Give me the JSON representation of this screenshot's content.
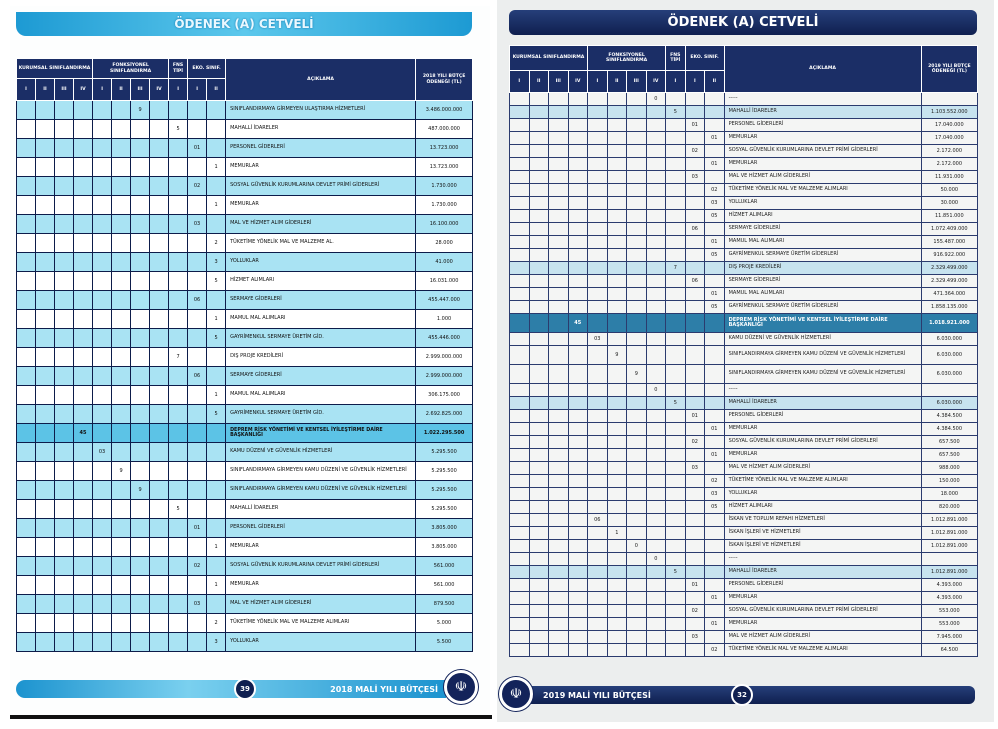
{
  "left_page": {
    "title": "ÖDENEK (A) CETVELİ",
    "headers": {
      "kurumsal": "KURUMSAL SINIFLANDIRMA",
      "fonksiyonel": "FONKSİYONEL SINIFLANDIRMA",
      "fns": "FNS TİPİ",
      "eko": "EKO. SINIF.",
      "aciklama": "AÇIKLAMA",
      "amount": "2018 YILI BÜTÇE ÖDENEĞİ (TL)",
      "levels": [
        "I",
        "II",
        "III",
        "IV",
        "I",
        "II",
        "III",
        "IV",
        "I",
        "I",
        "II"
      ]
    },
    "rows": [
      {
        "col": 6,
        "code": "9",
        "desc": "SINIFLANDIRMAYA GİRMEYEN ULAŞTIRMA HİZMETLERİ",
        "amount": "3.486.000.000",
        "kind": "shaded"
      },
      {
        "col": 8,
        "code": "5",
        "desc": "MAHALLİ İDARELER",
        "amount": "487.000.000",
        "kind": "white"
      },
      {
        "col": 9,
        "code": "01",
        "desc": "PERSONEL GİDERLERİ",
        "amount": "13.723.000",
        "kind": "shaded"
      },
      {
        "col": 10,
        "code": "1",
        "desc": "MEMURLAR",
        "amount": "13.723.000",
        "kind": "white"
      },
      {
        "col": 9,
        "code": "02",
        "desc": "SOSYAL GÜVENLİK KURUMLARINA DEVLET PRİMİ GİDERLERİ",
        "amount": "1.730.000",
        "kind": "shaded"
      },
      {
        "col": 10,
        "code": "1",
        "desc": "MEMURLAR",
        "amount": "1.730.000",
        "kind": "white"
      },
      {
        "col": 9,
        "code": "03",
        "desc": "MAL VE HİZMET ALIM GİDERLERİ",
        "amount": "16.100.000",
        "kind": "shaded"
      },
      {
        "col": 10,
        "code": "2",
        "desc": "TÜKETİME YÖNELİK MAL VE MALZEME AL.",
        "amount": "28.000",
        "kind": "white"
      },
      {
        "col": 10,
        "code": "3",
        "desc": "YOLLUKLAR",
        "amount": "41.000",
        "kind": "shaded"
      },
      {
        "col": 10,
        "code": "5",
        "desc": "HİZMET ALIMLARI",
        "amount": "16.031.000",
        "kind": "white"
      },
      {
        "col": 9,
        "code": "06",
        "desc": "SERMAYE GİDERLERİ",
        "amount": "455.447.000",
        "kind": "shaded"
      },
      {
        "col": 10,
        "code": "1",
        "desc": "MAMUL MAL ALIMLARI",
        "amount": "1.000",
        "kind": "white"
      },
      {
        "col": 10,
        "code": "5",
        "desc": "GAYRİMENKUL SERMAYE ÜRETİM GİD.",
        "amount": "455.446.000",
        "kind": "shaded"
      },
      {
        "col": 8,
        "code": "7",
        "desc": "DIŞ PROJE KREDİLERİ",
        "amount": "2.999.000.000",
        "kind": "white"
      },
      {
        "col": 9,
        "code": "06",
        "desc": "SERMAYE GİDERLERİ",
        "amount": "2.999.000.000",
        "kind": "shaded"
      },
      {
        "col": 10,
        "code": "1",
        "desc": "MAMUL MAL ALIMLARI",
        "amount": "306.175.000",
        "kind": "white"
      },
      {
        "col": 10,
        "code": "5",
        "desc": "GAYRİMENKUL SERMAYE ÜRETİM GİD.",
        "amount": "2.692.825.000",
        "kind": "shaded"
      },
      {
        "col": 3,
        "code": "45",
        "desc": "DEPREM RİSK YÖNETİMİ VE KENTSEL İYİLEŞTİRME DAİRE BAŞKANLIĞI",
        "amount": "1.022.295.500",
        "kind": "dept"
      },
      {
        "col": 4,
        "code": "03",
        "desc": "KAMU DÜZENİ VE GÜVENLİK HİZMETLERİ",
        "amount": "5.295.500",
        "kind": "shaded"
      },
      {
        "col": 5,
        "code": "9",
        "desc": "SINIFLANDIRMAYA GİRMEYEN KAMU DÜZENİ VE GÜVENLİK HİZMETLERİ",
        "amount": "5.295.500",
        "kind": "white"
      },
      {
        "col": 6,
        "code": "9",
        "desc": "SINIFLANDIRMAYA GİRMEYEN KAMU DÜZENİ VE GÜVENLİK HİZMETLERİ",
        "amount": "5.295.500",
        "kind": "shaded"
      },
      {
        "col": 8,
        "code": "5",
        "desc": "MAHALLİ İDARELER",
        "amount": "5.295.500",
        "kind": "white"
      },
      {
        "col": 9,
        "code": "01",
        "desc": "PERSONEL GİDERLERİ",
        "amount": "3.805.000",
        "kind": "shaded"
      },
      {
        "col": 10,
        "code": "1",
        "desc": "MEMURLAR",
        "amount": "3.805.000",
        "kind": "white"
      },
      {
        "col": 9,
        "code": "02",
        "desc": "SOSYAL GÜVENLİK KURUMLARINA DEVLET PRİMİ GİDERLERİ",
        "amount": "561.000",
        "kind": "shaded"
      },
      {
        "col": 10,
        "code": "1",
        "desc": "MEMURLAR",
        "amount": "561.000",
        "kind": "white"
      },
      {
        "col": 9,
        "code": "03",
        "desc": "MAL VE HİZMET ALIM GİDERLERİ",
        "amount": "879.500",
        "kind": "shaded"
      },
      {
        "col": 10,
        "code": "2",
        "desc": "TÜKETİME YÖNELİK MAL VE MALZEME ALIMLARI",
        "amount": "5.000",
        "kind": "white"
      },
      {
        "col": 10,
        "code": "3",
        "desc": "YOLLUKLAR",
        "amount": "5.500",
        "kind": "shaded"
      }
    ],
    "footer": {
      "page_number": "39",
      "label": "2018 MALİ YILI BÜTÇESİ"
    }
  },
  "right_page": {
    "title": "ÖDENEK (A) CETVELİ",
    "headers": {
      "kurumsal": "KURUMSAL SINIFLANDIRMA",
      "fonksiyonel": "FONKSİYONEL SINIFLANDIRMA",
      "fns": "FNS TİPİ",
      "eko": "EKO. SINIF.",
      "aciklama": "AÇIKLAMA",
      "amount": "2019 YILI BÜTÇE ÖDENEĞİ (TL)",
      "levels": [
        "I",
        "II",
        "III",
        "IV",
        "I",
        "II",
        "III",
        "IV",
        "I",
        "I",
        "II"
      ]
    },
    "rows": [
      {
        "col": 7,
        "code": "0",
        "desc": "-----",
        "amount": "",
        "kind": "white"
      },
      {
        "col": 8,
        "code": "5",
        "desc": "MAHALLİ İDARELER",
        "amount": "1.103.552.000",
        "kind": "hl"
      },
      {
        "col": 9,
        "code": "01",
        "desc": "PERSONEL GİDERLERİ",
        "amount": "17.040.000",
        "kind": "white"
      },
      {
        "col": 10,
        "code": "01",
        "desc": "MEMURLAR",
        "amount": "17.040.000",
        "kind": "white"
      },
      {
        "col": 9,
        "code": "02",
        "desc": "SOSYAL GÜVENLİK KURUMLARINA DEVLET PRİMİ GİDERLERİ",
        "amount": "2.172.000",
        "kind": "white"
      },
      {
        "col": 10,
        "code": "01",
        "desc": "MEMURLAR",
        "amount": "2.172.000",
        "kind": "white"
      },
      {
        "col": 9,
        "code": "03",
        "desc": "MAL VE HİZMET ALIM GİDERLERİ",
        "amount": "11.931.000",
        "kind": "white"
      },
      {
        "col": 10,
        "code": "02",
        "desc": "TÜKETİME YÖNELİK MAL VE MALZEME ALIMLARI",
        "amount": "50.000",
        "kind": "white"
      },
      {
        "col": 10,
        "code": "03",
        "desc": "YOLLUKLAR",
        "amount": "30.000",
        "kind": "white"
      },
      {
        "col": 10,
        "code": "05",
        "desc": "HİZMET ALIMLARI",
        "amount": "11.851.000",
        "kind": "white"
      },
      {
        "col": 9,
        "code": "06",
        "desc": "SERMAYE GİDERLERİ",
        "amount": "1.072.409.000",
        "kind": "white"
      },
      {
        "col": 10,
        "code": "01",
        "desc": "MAMUL MAL ALIMLARI",
        "amount": "155.487.000",
        "kind": "white"
      },
      {
        "col": 10,
        "code": "05",
        "desc": "GAYRİMENKUL SERMAYE ÜRETİM GİDERLERİ",
        "amount": "916.922.000",
        "kind": "white"
      },
      {
        "col": 8,
        "code": "7",
        "desc": "DIŞ PROJE KREDİLERİ",
        "amount": "2.329.499.000",
        "kind": "hl"
      },
      {
        "col": 9,
        "code": "06",
        "desc": "SERMAYE GİDERLERİ",
        "amount": "2.329.499.000",
        "kind": "white"
      },
      {
        "col": 10,
        "code": "01",
        "desc": "MAMUL MAL ALIMLARI",
        "amount": "471.364.000",
        "kind": "white"
      },
      {
        "col": 10,
        "code": "05",
        "desc": "GAYRİMENKUL SERMAYE ÜRETİM GİDERLERİ",
        "amount": "1.858.135.000",
        "kind": "white"
      },
      {
        "col": 3,
        "code": "45",
        "desc": "DEPREM RİSK YÖNETİMİ VE KENTSEL İYİLEŞTİRME DAİRE BAŞKANLIĞI",
        "amount": "1.018.921.000",
        "kind": "dept two"
      },
      {
        "col": 4,
        "code": "03",
        "desc": "KAMU DÜZENİ VE GÜVENLİK HİZMETLERİ",
        "amount": "6.030.000",
        "kind": "white"
      },
      {
        "col": 5,
        "code": "9",
        "desc": "SINIFLANDIRMAYA GİRMEYEN KAMU DÜZENİ VE GÜVENLİK HİZMETLERİ",
        "amount": "6.030.000",
        "kind": "white two"
      },
      {
        "col": 6,
        "code": "9",
        "desc": "SINIFLANDIRMAYA GİRMEYEN KAMU DÜZENİ VE GÜVENLİK HİZMETLERİ",
        "amount": "6.030.000",
        "kind": "white two"
      },
      {
        "col": 7,
        "code": "0",
        "desc": "-----",
        "amount": "",
        "kind": "white"
      },
      {
        "col": 8,
        "code": "5",
        "desc": "MAHALLİ İDARELER",
        "amount": "6.030.000",
        "kind": "hl"
      },
      {
        "col": 9,
        "code": "01",
        "desc": "PERSONEL GİDERLERİ",
        "amount": "4.384.500",
        "kind": "white"
      },
      {
        "col": 10,
        "code": "01",
        "desc": "MEMURLAR",
        "amount": "4.384.500",
        "kind": "white"
      },
      {
        "col": 9,
        "code": "02",
        "desc": "SOSYAL GÜVENLİK KURUMLARINA DEVLET PRİMİ GİDERLERİ",
        "amount": "657.500",
        "kind": "white"
      },
      {
        "col": 10,
        "code": "01",
        "desc": "MEMURLAR",
        "amount": "657.500",
        "kind": "white"
      },
      {
        "col": 9,
        "code": "03",
        "desc": "MAL VE HİZMET ALIM GİDERLERİ",
        "amount": "988.000",
        "kind": "white"
      },
      {
        "col": 10,
        "code": "02",
        "desc": "TÜKETİME YÖNELİK MAL VE MALZEME ALIMLARI",
        "amount": "150.000",
        "kind": "white"
      },
      {
        "col": 10,
        "code": "03",
        "desc": "YOLLUKLAR",
        "amount": "18.000",
        "kind": "white"
      },
      {
        "col": 10,
        "code": "05",
        "desc": "HİZMET ALIMLARI",
        "amount": "820.000",
        "kind": "white"
      },
      {
        "col": 4,
        "code": "06",
        "desc": "İSKAN VE TOPLUM REFAHI HİZMETLERİ",
        "amount": "1.012.891.000",
        "kind": "white"
      },
      {
        "col": 5,
        "code": "1",
        "desc": "İSKAN İŞLERİ VE HİZMETLERİ",
        "amount": "1.012.891.000",
        "kind": "white"
      },
      {
        "col": 6,
        "code": "0",
        "desc": "İSKAN İŞLERİ VE HİZMETLERİ",
        "amount": "1.012.891.000",
        "kind": "white"
      },
      {
        "col": 7,
        "code": "0",
        "desc": "-----",
        "amount": "",
        "kind": "white"
      },
      {
        "col": 8,
        "code": "5",
        "desc": "MAHALLİ İDARELER",
        "amount": "1.012.891.000",
        "kind": "hl"
      },
      {
        "col": 9,
        "code": "01",
        "desc": "PERSONEL GİDERLERİ",
        "amount": "4.393.000",
        "kind": "white"
      },
      {
        "col": 10,
        "code": "01",
        "desc": "MEMURLAR",
        "amount": "4.393.000",
        "kind": "white"
      },
      {
        "col": 9,
        "code": "02",
        "desc": "SOSYAL GÜVENLİK KURUMLARINA DEVLET PRİMİ GİDERLERİ",
        "amount": "553.000",
        "kind": "white"
      },
      {
        "col": 10,
        "code": "01",
        "desc": "MEMURLAR",
        "amount": "553.000",
        "kind": "white"
      },
      {
        "col": 9,
        "code": "03",
        "desc": "MAL VE HİZMET ALIM GİDERLERİ",
        "amount": "7.945.000",
        "kind": "white"
      },
      {
        "col": 10,
        "code": "02",
        "desc": "TÜKETİME YÖNELİK MAL VE MALZEME ALIMLARI",
        "amount": "64.500",
        "kind": "white"
      }
    ],
    "footer": {
      "page_number": "32",
      "label": "2019 MALİ YILI BÜTÇESİ"
    }
  },
  "logo_icon": "istanbul-municipality-logo-icon"
}
